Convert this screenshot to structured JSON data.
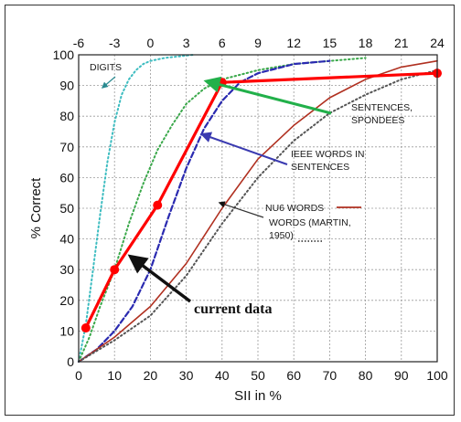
{
  "chart_data": {
    "type": "line",
    "xlabel": "SII in %",
    "ylabel": "% Correct",
    "xlim": [
      0,
      100
    ],
    "ylim": [
      0,
      100
    ],
    "grid": true,
    "x_ticks": [
      0,
      10,
      20,
      30,
      40,
      50,
      60,
      70,
      80,
      90,
      100
    ],
    "y_ticks": [
      0,
      10,
      20,
      30,
      40,
      50,
      60,
      70,
      80,
      90,
      100
    ],
    "top_axis": {
      "label": "",
      "ticks": [
        -6,
        -3,
        0,
        3,
        6,
        9,
        12,
        15,
        18,
        21,
        24
      ],
      "sii_positions": [
        0,
        10,
        20,
        30,
        40,
        50,
        60,
        70,
        80,
        90,
        100
      ]
    },
    "series": [
      {
        "name": "DIGITS",
        "color": "#3cbcc0",
        "style": "dotted",
        "x": [
          0,
          2,
          4,
          6,
          8,
          10,
          12,
          14,
          16,
          18,
          20,
          24,
          28,
          32
        ],
        "y": [
          0,
          12,
          30,
          48,
          65,
          78,
          87,
          92,
          95,
          97,
          98,
          99,
          99.5,
          100
        ]
      },
      {
        "name": "SENTENCES, SPONDEES",
        "color": "#3aa84a",
        "style": "dotted",
        "x": [
          0,
          3,
          6,
          10,
          14,
          18,
          22,
          26,
          30,
          35,
          40,
          50,
          60,
          70,
          80
        ],
        "y": [
          0,
          8,
          18,
          30,
          45,
          58,
          69,
          77,
          84,
          89,
          92,
          95,
          97,
          98,
          99
        ]
      },
      {
        "name": "IEEE WORDS IN SENTENCES",
        "color": "#2a2ab0",
        "style": "dashed",
        "x": [
          0,
          5,
          10,
          15,
          20,
          25,
          30,
          35,
          40,
          45,
          50,
          60,
          70
        ],
        "y": [
          0,
          4,
          10,
          18,
          30,
          47,
          63,
          76,
          85,
          91,
          94,
          97,
          98
        ]
      },
      {
        "name": "NU6 WORDS",
        "color": "#b03020",
        "style": "solid",
        "x": [
          0,
          10,
          20,
          30,
          40,
          50,
          60,
          70,
          80,
          90,
          100
        ],
        "y": [
          0,
          8,
          18,
          32,
          50,
          66,
          77,
          86,
          92,
          96,
          98
        ]
      },
      {
        "name": "WORDS (MARTIN, 1950)",
        "color": "#555555",
        "style": "dotted",
        "x": [
          0,
          10,
          20,
          30,
          40,
          50,
          60,
          70,
          80,
          90,
          100
        ],
        "y": [
          0,
          7,
          15,
          28,
          45,
          60,
          72,
          81,
          87,
          92,
          95
        ]
      },
      {
        "name": "current data",
        "color": "#ff0000",
        "style": "solid",
        "markers": true,
        "x": [
          2,
          10,
          22,
          40,
          100
        ],
        "y": [
          11,
          30,
          51,
          91,
          94
        ]
      }
    ],
    "annotations": [
      {
        "id": "digits",
        "lines": [
          "DIGITS"
        ]
      },
      {
        "id": "sentences",
        "lines": [
          "SENTENCES,",
          "SPONDEES"
        ]
      },
      {
        "id": "ieee",
        "lines": [
          "IEEE WORDS IN",
          "SENTENCES"
        ]
      },
      {
        "id": "nu6",
        "lines": [
          "NU6 WORDS"
        ]
      },
      {
        "id": "martin",
        "lines": [
          "WORDS (MARTIN,",
          "1950)"
        ]
      },
      {
        "id": "current",
        "lines": [
          "current data"
        ]
      }
    ]
  }
}
